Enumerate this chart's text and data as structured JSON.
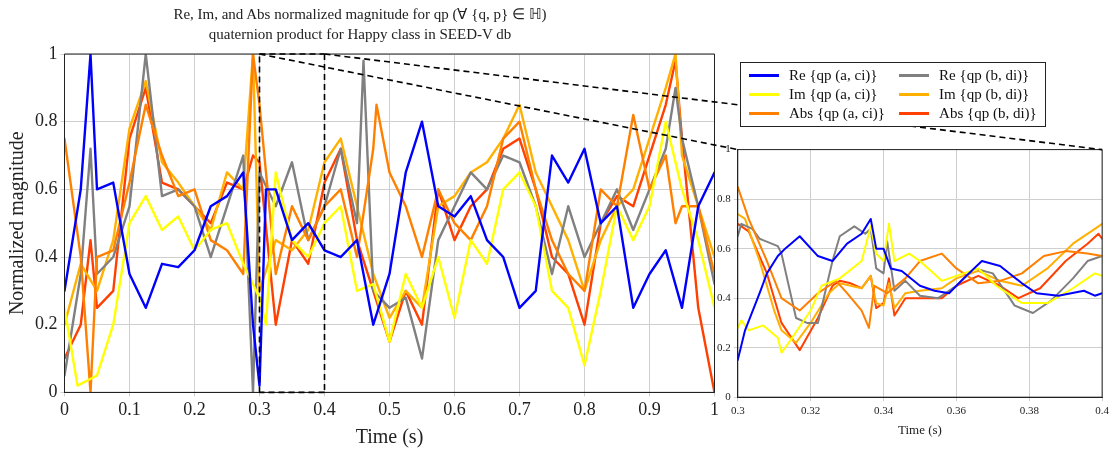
{
  "chart_data": [
    {
      "type": "line",
      "title": "Re, Im, and Abs normalized magnitude for qp (∀ {q, p} ∈ ℍ)",
      "subtitle": "quaternion product for Happy class in SEED-V db",
      "xlabel": "Time (s)",
      "ylabel": "Normalized magnitude",
      "xlim": [
        0,
        1
      ],
      "ylim": [
        0,
        1
      ],
      "xticks": [
        0,
        0.1,
        0.2,
        0.3,
        0.4,
        0.5,
        0.6,
        0.7,
        0.8,
        0.9,
        1
      ],
      "yticks": [
        0,
        0.2,
        0.4,
        0.6,
        0.8,
        1
      ],
      "grid": true,
      "legend": "top right",
      "marker": "none",
      "line_style": "solid",
      "series": [
        {
          "name": "Re {qp (a, ci)}",
          "color": "#0000ff",
          "x": [
            0,
            0.025,
            0.04,
            0.05,
            0.075,
            0.1,
            0.125,
            0.15,
            0.175,
            0.2,
            0.225,
            0.25,
            0.275,
            0.29,
            0.3,
            0.31,
            0.325,
            0.35,
            0.375,
            0.4,
            0.425,
            0.45,
            0.475,
            0.5,
            0.525,
            0.55,
            0.575,
            0.6,
            0.625,
            0.65,
            0.675,
            0.7,
            0.725,
            0.75,
            0.775,
            0.8,
            0.825,
            0.85,
            0.875,
            0.9,
            0.925,
            0.95,
            0.975,
            1
          ],
          "values": [
            0.3,
            0.6,
            1,
            0.6,
            0.62,
            0.35,
            0.25,
            0.38,
            0.37,
            0.42,
            0.55,
            0.58,
            0.65,
            0.2,
            0.02,
            0.6,
            0.6,
            0.45,
            0.5,
            0.42,
            0.4,
            0.45,
            0.2,
            0.35,
            0.65,
            0.8,
            0.55,
            0.52,
            0.58,
            0.45,
            0.4,
            0.25,
            0.3,
            0.7,
            0.62,
            0.72,
            0.5,
            0.55,
            0.25,
            0.35,
            0.42,
            0.25,
            0.55,
            0.65
          ]
        },
        {
          "name": "Im {qp (a, ci)}",
          "color": "#ffff00",
          "x": [
            0,
            0.02,
            0.05,
            0.075,
            0.1,
            0.125,
            0.15,
            0.175,
            0.2,
            0.225,
            0.25,
            0.275,
            0.3,
            0.31,
            0.325,
            0.35,
            0.375,
            0.4,
            0.425,
            0.45,
            0.475,
            0.5,
            0.525,
            0.55,
            0.575,
            0.6,
            0.625,
            0.65,
            0.675,
            0.7,
            0.725,
            0.75,
            0.775,
            0.8,
            0.825,
            0.85,
            0.875,
            0.9,
            0.925,
            0.95,
            0.975,
            1
          ],
          "values": [
            0.25,
            0.02,
            0.05,
            0.2,
            0.5,
            0.58,
            0.48,
            0.52,
            0.42,
            0.48,
            0.5,
            0.38,
            0.28,
            0.2,
            0.65,
            0.45,
            0.4,
            0.5,
            0.55,
            0.3,
            0.32,
            0.15,
            0.35,
            0.25,
            0.4,
            0.22,
            0.45,
            0.38,
            0.6,
            0.65,
            0.55,
            0.3,
            0.25,
            0.08,
            0.3,
            0.55,
            0.45,
            0.55,
            0.8,
            0.6,
            0.45,
            0.25
          ]
        },
        {
          "name": "Abs {qp (a, ci)}",
          "color": "#ff8000",
          "x": [
            0,
            0.025,
            0.04,
            0.05,
            0.075,
            0.1,
            0.125,
            0.15,
            0.175,
            0.2,
            0.225,
            0.25,
            0.275,
            0.29,
            0.3,
            0.325,
            0.35,
            0.375,
            0.4,
            0.425,
            0.45,
            0.475,
            0.48,
            0.5,
            0.525,
            0.55,
            0.575,
            0.6,
            0.625,
            0.65,
            0.675,
            0.7,
            0.725,
            0.75,
            0.775,
            0.8,
            0.825,
            0.85,
            0.875,
            0.9,
            0.925,
            0.94,
            0.95,
            0.975,
            1
          ],
          "values": [
            0.75,
            0.4,
            0,
            0.4,
            0.42,
            0.62,
            0.85,
            0.7,
            0.58,
            0.6,
            0.45,
            0.42,
            0.35,
            1,
            0.85,
            0.35,
            0.55,
            0.45,
            0.55,
            0.6,
            0.4,
            0.72,
            0.85,
            0.65,
            0.55,
            0.4,
            0.6,
            0.5,
            0.45,
            0.55,
            0.75,
            0.8,
            0.6,
            0.45,
            0.35,
            0.3,
            0.6,
            0.55,
            0.82,
            0.6,
            0.7,
            0.5,
            0.55,
            0.55,
            0.35
          ]
        },
        {
          "name": "Re {qp (b, di)}",
          "color": "#808080",
          "x": [
            0,
            0.025,
            0.04,
            0.05,
            0.075,
            0.1,
            0.125,
            0.15,
            0.175,
            0.2,
            0.225,
            0.25,
            0.275,
            0.29,
            0.3,
            0.325,
            0.35,
            0.375,
            0.4,
            0.425,
            0.45,
            0.46,
            0.475,
            0.5,
            0.525,
            0.55,
            0.575,
            0.6,
            0.625,
            0.65,
            0.675,
            0.7,
            0.725,
            0.75,
            0.775,
            0.8,
            0.825,
            0.85,
            0.875,
            0.9,
            0.925,
            0.94,
            0.95,
            0.975,
            1
          ],
          "values": [
            0.05,
            0.35,
            0.72,
            0.35,
            0.4,
            0.55,
            1,
            0.58,
            0.6,
            0.55,
            0.4,
            0.55,
            0.7,
            0,
            0.65,
            0.55,
            0.68,
            0.45,
            0.55,
            0.72,
            0.5,
            0.98,
            0.3,
            0.25,
            0.28,
            0.1,
            0.45,
            0.55,
            0.65,
            0.6,
            0.7,
            0.68,
            0.55,
            0.35,
            0.55,
            0.4,
            0.5,
            0.6,
            0.48,
            0.6,
            0.72,
            0.9,
            0.75,
            0.55,
            0.32
          ]
        },
        {
          "name": "Im {qp (b, di)}",
          "color": "#ffb000",
          "x": [
            0,
            0.025,
            0.05,
            0.075,
            0.1,
            0.125,
            0.15,
            0.175,
            0.2,
            0.225,
            0.25,
            0.275,
            0.29,
            0.3,
            0.325,
            0.35,
            0.375,
            0.4,
            0.425,
            0.45,
            0.475,
            0.5,
            0.525,
            0.55,
            0.575,
            0.6,
            0.625,
            0.65,
            0.675,
            0.7,
            0.725,
            0.75,
            0.775,
            0.8,
            0.825,
            0.85,
            0.875,
            0.9,
            0.925,
            0.94,
            0.95,
            0.975,
            1
          ],
          "values": [
            0.2,
            0.38,
            0.3,
            0.45,
            0.78,
            0.92,
            0.68,
            0.62,
            0.55,
            0.48,
            0.65,
            0.6,
            1,
            0.3,
            0.45,
            0.42,
            0.48,
            0.68,
            0.75,
            0.55,
            0.35,
            0.22,
            0.3,
            0.25,
            0.55,
            0.58,
            0.65,
            0.68,
            0.75,
            0.85,
            0.65,
            0.55,
            0.45,
            0.3,
            0.45,
            0.55,
            0.6,
            0.75,
            0.9,
            1,
            0.7,
            0.55,
            0.4
          ]
        },
        {
          "name": "Abs {qp (b, di)}",
          "color": "#ff4000",
          "x": [
            0,
            0.025,
            0.04,
            0.05,
            0.075,
            0.1,
            0.125,
            0.15,
            0.175,
            0.2,
            0.225,
            0.25,
            0.275,
            0.29,
            0.3,
            0.325,
            0.35,
            0.375,
            0.4,
            0.425,
            0.45,
            0.475,
            0.5,
            0.525,
            0.55,
            0.575,
            0.6,
            0.625,
            0.65,
            0.675,
            0.7,
            0.725,
            0.75,
            0.775,
            0.8,
            0.825,
            0.85,
            0.875,
            0.9,
            0.925,
            0.94,
            0.95,
            0.975,
            1
          ],
          "values": [
            0.1,
            0.2,
            0.45,
            0.25,
            0.3,
            0.75,
            0.9,
            0.62,
            0.6,
            0.55,
            0.5,
            0.62,
            0.6,
            0.7,
            0.68,
            0.2,
            0.45,
            0.38,
            0.62,
            0.72,
            0.45,
            0.3,
            0.15,
            0.3,
            0.2,
            0.6,
            0.45,
            0.55,
            0.6,
            0.72,
            0.75,
            0.6,
            0.4,
            0.35,
            0.2,
            0.5,
            0.58,
            0.55,
            0.7,
            0.85,
            0.98,
            0.75,
            0.25,
            0
          ]
        }
      ]
    },
    {
      "type": "line",
      "xlabel": "Time (s)",
      "xlim": [
        0.3,
        0.4
      ],
      "ylim": [
        0,
        1
      ],
      "xticks": [
        0.3,
        0.32,
        0.34,
        0.36,
        0.38,
        0.4
      ],
      "yticks": [
        0,
        0.2,
        0.4,
        0.6,
        0.8,
        1
      ],
      "grid": true,
      "marker": "none",
      "line_style": "solid",
      "series": [
        {
          "color": "#0000ff",
          "x": [
            0.3,
            0.302,
            0.306,
            0.308,
            0.311,
            0.313,
            0.317,
            0.322,
            0.326,
            0.33,
            0.334,
            0.3365,
            0.338,
            0.34,
            0.342,
            0.345,
            0.35,
            0.354,
            0.358,
            0.362,
            0.367,
            0.372,
            0.378,
            0.382,
            0.388,
            0.395,
            0.398,
            0.4
          ],
          "values": [
            0.15,
            0.27,
            0.42,
            0.5,
            0.57,
            0.6,
            0.65,
            0.57,
            0.55,
            0.62,
            0.66,
            0.72,
            0.6,
            0.6,
            0.52,
            0.51,
            0.45,
            0.43,
            0.42,
            0.48,
            0.55,
            0.53,
            0.46,
            0.42,
            0.41,
            0.43,
            0.41,
            0.42
          ]
        },
        {
          "color": "#ffff00",
          "x": [
            0.3,
            0.301,
            0.303,
            0.307,
            0.311,
            0.312,
            0.314,
            0.32,
            0.323,
            0.328,
            0.334,
            0.3365,
            0.338,
            0.34,
            0.3415,
            0.343,
            0.347,
            0.35,
            0.356,
            0.362,
            0.366,
            0.371,
            0.378,
            0.385,
            0.392,
            0.398,
            0.4
          ],
          "values": [
            0.28,
            0.31,
            0.27,
            0.29,
            0.24,
            0.18,
            0.22,
            0.35,
            0.45,
            0.48,
            0.55,
            0.69,
            0.58,
            0.55,
            0.7,
            0.55,
            0.58,
            0.55,
            0.47,
            0.5,
            0.52,
            0.45,
            0.38,
            0.38,
            0.44,
            0.5,
            0.49
          ]
        },
        {
          "color": "#ff8000",
          "x": [
            0.3,
            0.303,
            0.308,
            0.312,
            0.317,
            0.322,
            0.327,
            0.33,
            0.334,
            0.336,
            0.3375,
            0.341,
            0.346,
            0.35,
            0.356,
            0.36,
            0.366,
            0.372,
            0.378,
            0.384,
            0.39,
            0.396,
            0.4
          ],
          "values": [
            0.85,
            0.72,
            0.55,
            0.4,
            0.35,
            0.42,
            0.47,
            0.42,
            0.35,
            0.28,
            0.45,
            0.42,
            0.48,
            0.55,
            0.58,
            0.52,
            0.46,
            0.47,
            0.5,
            0.57,
            0.59,
            0.58,
            0.57
          ]
        },
        {
          "color": "#808080",
          "x": [
            0.3,
            0.301,
            0.304,
            0.306,
            0.311,
            0.312,
            0.316,
            0.319,
            0.322,
            0.326,
            0.328,
            0.332,
            0.335,
            0.3365,
            0.338,
            0.34,
            0.341,
            0.343,
            0.346,
            0.35,
            0.355,
            0.36,
            0.365,
            0.37,
            0.376,
            0.381,
            0.386,
            0.392,
            0.396,
            0.4
          ],
          "values": [
            0.65,
            0.7,
            0.68,
            0.64,
            0.61,
            0.58,
            0.32,
            0.3,
            0.3,
            0.55,
            0.65,
            0.69,
            0.66,
            0.68,
            0.52,
            0.5,
            0.63,
            0.43,
            0.47,
            0.41,
            0.4,
            0.45,
            0.52,
            0.5,
            0.37,
            0.34,
            0.39,
            0.48,
            0.55,
            0.57
          ]
        },
        {
          "color": "#ffb000",
          "x": [
            0.3,
            0.302,
            0.306,
            0.31,
            0.312,
            0.316,
            0.32,
            0.325,
            0.328,
            0.331,
            0.334,
            0.3365,
            0.338,
            0.34,
            0.3415,
            0.343,
            0.346,
            0.35,
            0.356,
            0.36,
            0.366,
            0.372,
            0.378,
            0.385,
            0.392,
            0.398,
            0.4
          ],
          "values": [
            0.74,
            0.72,
            0.55,
            0.35,
            0.27,
            0.22,
            0.3,
            0.42,
            0.46,
            0.45,
            0.44,
            0.49,
            0.38,
            0.37,
            0.46,
            0.36,
            0.42,
            0.43,
            0.44,
            0.48,
            0.51,
            0.47,
            0.45,
            0.52,
            0.62,
            0.68,
            0.7
          ]
        },
        {
          "color": "#ff4000",
          "x": [
            0.3,
            0.303,
            0.308,
            0.312,
            0.317,
            0.322,
            0.326,
            0.328,
            0.331,
            0.334,
            0.3365,
            0.338,
            0.34,
            0.3415,
            0.343,
            0.346,
            0.35,
            0.356,
            0.36,
            0.366,
            0.372,
            0.377,
            0.383,
            0.39,
            0.396,
            0.399,
            0.4
          ],
          "values": [
            0.7,
            0.67,
            0.5,
            0.3,
            0.19,
            0.32,
            0.45,
            0.47,
            0.46,
            0.44,
            0.49,
            0.36,
            0.38,
            0.48,
            0.33,
            0.4,
            0.4,
            0.4,
            0.45,
            0.49,
            0.45,
            0.4,
            0.44,
            0.55,
            0.62,
            0.66,
            0.64
          ]
        }
      ]
    }
  ]
}
